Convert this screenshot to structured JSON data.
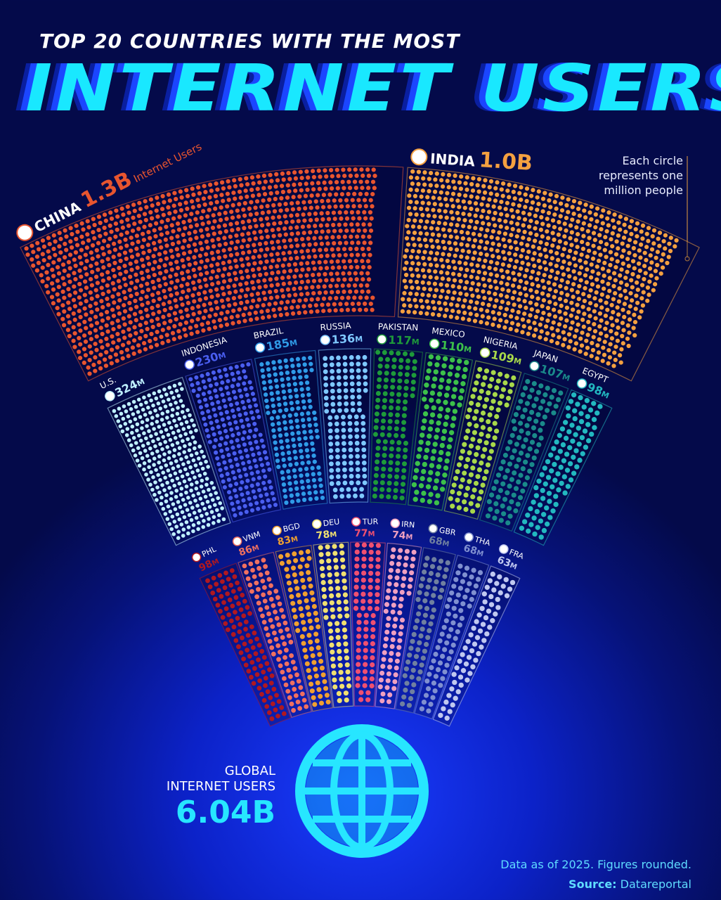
{
  "title": {
    "line1": "TOP 20 COUNTRIES WITH THE MOST",
    "line2": "INTERNET USERS"
  },
  "note": {
    "line1": "Each circle",
    "line2": "represents one",
    "line3": "million people"
  },
  "global": {
    "label1": "GLOBAL",
    "label2": "INTERNET USERS",
    "value": "6.04B"
  },
  "footer": {
    "note": "Data as of 2025. Figures rounded.",
    "source_label": "Source:",
    "source": "Datareportal"
  },
  "chart_data": {
    "type": "radial-dot",
    "unit": "one circle = one million people",
    "rows": [
      [
        {
          "country": "CHINA",
          "label": "1.3B",
          "suffix": "Internet Users",
          "value": 1300,
          "color": "#e8552f"
        },
        {
          "country": "INDIA",
          "label": "1.0B",
          "value": 1000,
          "color": "#f4a040"
        }
      ],
      [
        {
          "country": "U.S.",
          "label": "324M",
          "value": 324,
          "color": "#bff0ff"
        },
        {
          "country": "INDONESIA",
          "label": "230M",
          "value": 230,
          "color": "#4a5ef0"
        },
        {
          "country": "BRAZIL",
          "label": "185M",
          "value": 185,
          "color": "#2f9be8"
        },
        {
          "country": "RUSSIA",
          "label": "136M",
          "value": 136,
          "color": "#7ec8ff"
        },
        {
          "country": "PAKISTAN",
          "label": "117M",
          "value": 117,
          "color": "#1e9a3a"
        },
        {
          "country": "MEXICO",
          "label": "110M",
          "value": 110,
          "color": "#3cc04a"
        },
        {
          "country": "NIGERIA",
          "label": "109M",
          "value": 109,
          "color": "#a8d84a"
        },
        {
          "country": "JAPAN",
          "label": "107M",
          "value": 107,
          "color": "#1a8a8a"
        },
        {
          "country": "EGYPT",
          "label": "98M",
          "value": 98,
          "color": "#22b8c0"
        }
      ],
      [
        {
          "country": "PHL",
          "label": "98M",
          "value": 98,
          "color": "#b01820"
        },
        {
          "country": "VNM",
          "label": "86M",
          "value": 86,
          "color": "#f07060"
        },
        {
          "country": "BGD",
          "label": "83M",
          "value": 83,
          "color": "#f0a030"
        },
        {
          "country": "DEU",
          "label": "78M",
          "value": 78,
          "color": "#f0e070"
        },
        {
          "country": "TUR",
          "label": "77M",
          "value": 77,
          "color": "#f05070"
        },
        {
          "country": "IRN",
          "label": "74M",
          "value": 74,
          "color": "#f0a0c0"
        },
        {
          "country": "GBR",
          "label": "68M",
          "value": 68,
          "color": "#7080a0"
        },
        {
          "country": "THA",
          "label": "68M",
          "value": 68,
          "color": "#8090d0"
        },
        {
          "country": "FRA",
          "label": "63M",
          "value": 63,
          "color": "#c0c8f0"
        }
      ]
    ]
  }
}
